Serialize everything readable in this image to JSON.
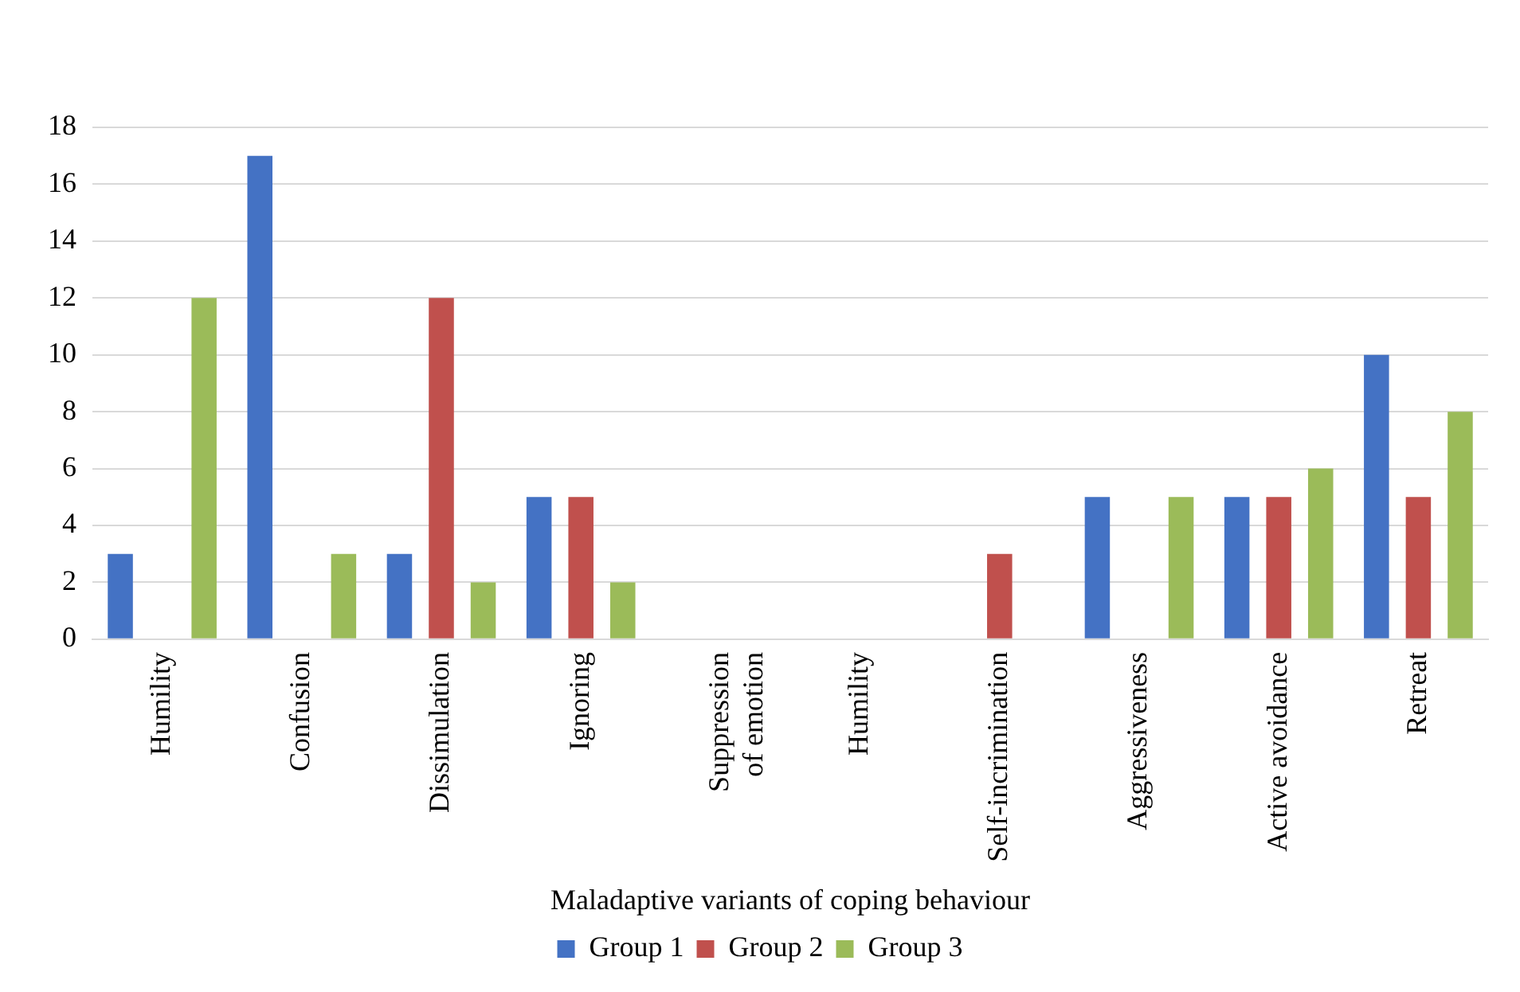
{
  "chart_data": {
    "type": "bar",
    "xlabel": "Maladaptive variants of coping behaviour",
    "categories": [
      "Humility",
      "Confusion",
      "Dissimulation",
      "Ignoring",
      "Suppression of emotion",
      "Humility",
      "Self-incrimination",
      "Aggressiveness",
      "Active avoidance",
      "Retreat"
    ],
    "series": [
      {
        "name": "Group 1",
        "color": "#4472c4",
        "values": [
          3,
          17,
          3,
          5,
          0,
          0,
          0,
          5,
          5,
          10
        ]
      },
      {
        "name": "Group 2",
        "color": "#c0504d",
        "values": [
          0,
          0,
          12,
          5,
          0,
          0,
          3,
          0,
          5,
          5
        ]
      },
      {
        "name": "Group 3",
        "color": "#9bbb59",
        "values": [
          12,
          3,
          2,
          2,
          0,
          0,
          0,
          5,
          6,
          8
        ]
      }
    ],
    "ylim": [
      0,
      18
    ],
    "yticks": [
      0,
      2,
      4,
      6,
      8,
      10,
      12,
      14,
      16,
      18
    ],
    "grid": "y",
    "legend": "bottom"
  }
}
